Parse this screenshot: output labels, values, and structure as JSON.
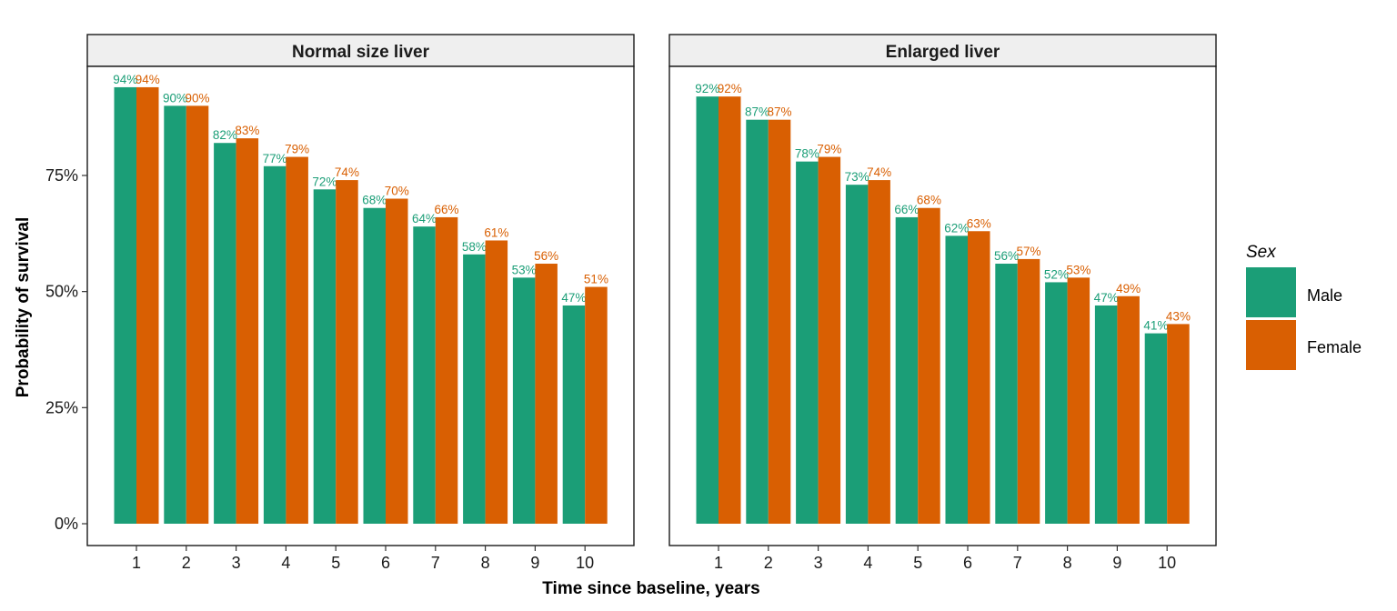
{
  "chart_data": {
    "type": "bar",
    "xlabel": "Time since baseline, years",
    "ylabel": "Probability of survival",
    "ylim": [
      0,
      1
    ],
    "y_ticks": [
      "0%",
      "25%",
      "50%",
      "75%"
    ],
    "y_tick_values": [
      0,
      0.25,
      0.5,
      0.75
    ],
    "categories": [
      "1",
      "2",
      "3",
      "4",
      "5",
      "6",
      "7",
      "8",
      "9",
      "10"
    ],
    "legend": {
      "title": "Sex",
      "position": "right",
      "items": [
        {
          "name": "Male",
          "color": "#1B9E77"
        },
        {
          "name": "Female",
          "color": "#D95F02"
        }
      ]
    },
    "panels": [
      {
        "title": "Normal size liver",
        "series": [
          {
            "name": "Male",
            "values": [
              0.94,
              0.9,
              0.82,
              0.77,
              0.72,
              0.68,
              0.64,
              0.58,
              0.53,
              0.47
            ],
            "labels": [
              "94%",
              "90%",
              "82%",
              "77%",
              "72%",
              "68%",
              "64%",
              "58%",
              "53%",
              "47%"
            ]
          },
          {
            "name": "Female",
            "values": [
              0.94,
              0.9,
              0.83,
              0.79,
              0.74,
              0.7,
              0.66,
              0.61,
              0.56,
              0.51
            ],
            "labels": [
              "94%",
              "90%",
              "83%",
              "79%",
              "74%",
              "70%",
              "66%",
              "61%",
              "56%",
              "51%"
            ]
          }
        ]
      },
      {
        "title": "Enlarged liver",
        "series": [
          {
            "name": "Male",
            "values": [
              0.92,
              0.87,
              0.78,
              0.73,
              0.66,
              0.62,
              0.56,
              0.52,
              0.47,
              0.41
            ],
            "labels": [
              "92%",
              "87%",
              "78%",
              "73%",
              "66%",
              "62%",
              "56%",
              "52%",
              "47%",
              "41%"
            ]
          },
          {
            "name": "Female",
            "values": [
              0.92,
              0.87,
              0.79,
              0.74,
              0.68,
              0.63,
              0.57,
              0.53,
              0.49,
              0.43
            ],
            "labels": [
              "92%",
              "87%",
              "79%",
              "74%",
              "68%",
              "63%",
              "57%",
              "53%",
              "49%",
              "43%"
            ]
          }
        ]
      }
    ]
  }
}
